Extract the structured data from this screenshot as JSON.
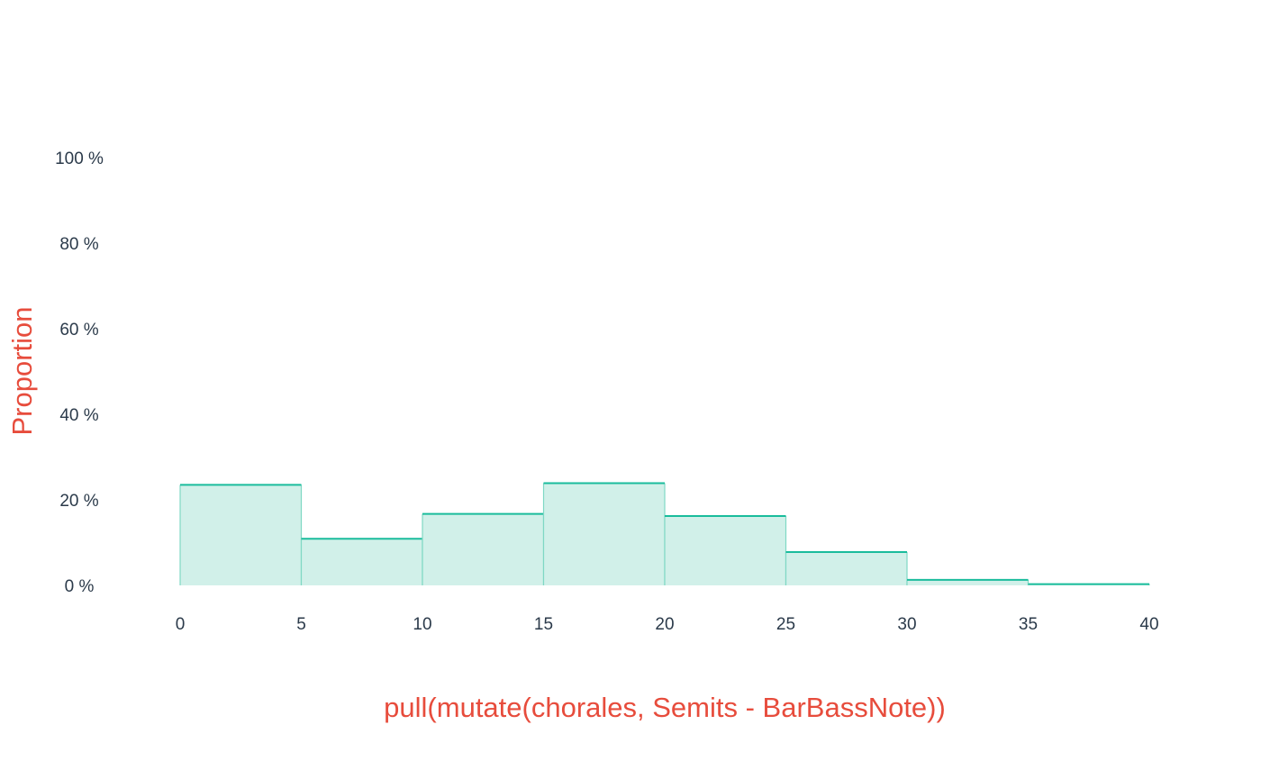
{
  "colors": {
    "bar_fill": "#d1f0e9",
    "bar_stroke": "#1abc9c",
    "bar_side_stroke": "#7fd8c4",
    "tick_text": "#2b3a4a",
    "axis_title": "#e74c3c"
  },
  "chart_data": {
    "type": "bar",
    "subtype": "histogram",
    "bins": [
      {
        "x0": 0,
        "x1": 5,
        "value": 23.5
      },
      {
        "x0": 5,
        "x1": 10,
        "value": 10.9
      },
      {
        "x0": 10,
        "x1": 15,
        "value": 16.7
      },
      {
        "x0": 15,
        "x1": 20,
        "value": 23.9
      },
      {
        "x0": 20,
        "x1": 25,
        "value": 16.2
      },
      {
        "x0": 25,
        "x1": 30,
        "value": 7.8
      },
      {
        "x0": 30,
        "x1": 35,
        "value": 1.3
      },
      {
        "x0": 35,
        "x1": 40,
        "value": 0.3
      }
    ],
    "xlim": [
      0,
      40
    ],
    "ylim": [
      0,
      100
    ],
    "x_ticks": [
      "0",
      "5",
      "10",
      "15",
      "20",
      "25",
      "30",
      "35",
      "40"
    ],
    "y_ticks": [
      "0 %",
      "20 %",
      "40 %",
      "60 %",
      "80 %",
      "100 %"
    ],
    "xlabel": "pull(mutate(chorales, Semits - BarBassNote))",
    "ylabel": "Proportion",
    "title": "",
    "grid": false,
    "legend": "none"
  }
}
